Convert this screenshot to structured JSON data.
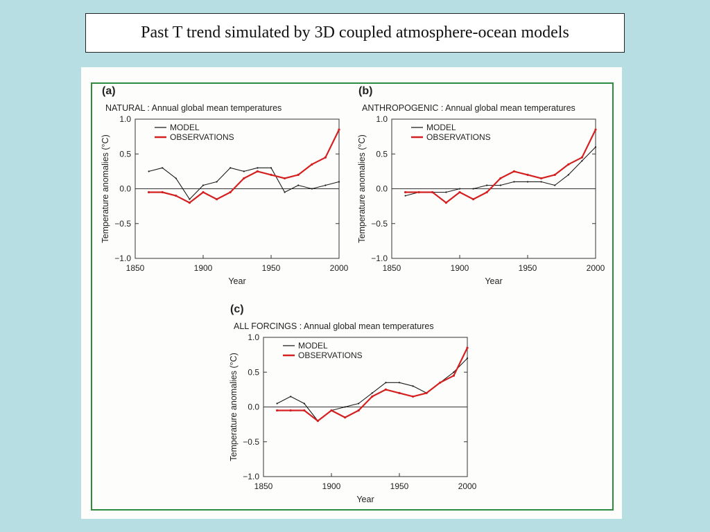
{
  "slide": {
    "title": "Past T trend simulated by 3D coupled atmosphere-ocean models"
  },
  "colors": {
    "background": "#b7dfe3",
    "panel": "#fdfdfb",
    "frame": "#2f8a3e",
    "model": "#1a1a1a",
    "observations": "#d42020"
  },
  "chart_data": [
    {
      "type": "line",
      "panel_label": "(a)",
      "title": "NATURAL : Annual global mean temperatures",
      "xlabel": "Year",
      "ylabel": "Temperature anomalies (°C)",
      "xlim": [
        1850,
        2000
      ],
      "ylim": [
        -1.0,
        1.0
      ],
      "xticks": [
        1850,
        1900,
        1950,
        2000
      ],
      "yticks": [
        -1.0,
        -0.5,
        0.0,
        0.5,
        1.0
      ],
      "ytick_labels": [
        "−1.0",
        "−0.5",
        "0.0",
        "0.5",
        "1.0"
      ],
      "legend_position": "top-left",
      "x": [
        1860,
        1870,
        1880,
        1890,
        1900,
        1910,
        1920,
        1930,
        1940,
        1950,
        1960,
        1970,
        1980,
        1990,
        2000
      ],
      "series": [
        {
          "name": "MODEL",
          "values": [
            0.25,
            0.3,
            0.15,
            -0.15,
            0.05,
            0.1,
            0.3,
            0.25,
            0.3,
            0.3,
            -0.05,
            0.05,
            0.0,
            0.05,
            0.1
          ]
        },
        {
          "name": "OBSERVATIONS",
          "values": [
            -0.05,
            -0.05,
            -0.1,
            -0.2,
            -0.05,
            -0.15,
            -0.05,
            0.15,
            0.25,
            0.2,
            0.15,
            0.2,
            0.35,
            0.45,
            0.85
          ]
        }
      ]
    },
    {
      "type": "line",
      "panel_label": "(b)",
      "title": "ANTHROPOGENIC : Annual global mean temperatures",
      "xlabel": "Year",
      "ylabel": "Temperature anomalies (°C)",
      "xlim": [
        1850,
        2000
      ],
      "ylim": [
        -1.0,
        1.0
      ],
      "xticks": [
        1850,
        1900,
        1950,
        2000
      ],
      "yticks": [
        -1.0,
        -0.5,
        0.0,
        0.5,
        1.0
      ],
      "ytick_labels": [
        "−1.0",
        "−0.5",
        "0.0",
        "0.5",
        "1.0"
      ],
      "legend_position": "top-left",
      "x": [
        1860,
        1870,
        1880,
        1890,
        1900,
        1910,
        1920,
        1930,
        1940,
        1950,
        1960,
        1970,
        1980,
        1990,
        2000
      ],
      "series": [
        {
          "name": "MODEL",
          "values": [
            -0.1,
            -0.05,
            -0.05,
            -0.05,
            0.0,
            0.0,
            0.05,
            0.05,
            0.1,
            0.1,
            0.1,
            0.05,
            0.2,
            0.4,
            0.6
          ]
        },
        {
          "name": "OBSERVATIONS",
          "values": [
            -0.05,
            -0.05,
            -0.05,
            -0.2,
            -0.05,
            -0.15,
            -0.05,
            0.15,
            0.25,
            0.2,
            0.15,
            0.2,
            0.35,
            0.45,
            0.85
          ]
        }
      ]
    },
    {
      "type": "line",
      "panel_label": "(c)",
      "title": "ALL FORCINGS : Annual global mean temperatures",
      "xlabel": "Year",
      "ylabel": "Temperature anomalies (°C)",
      "xlim": [
        1850,
        2000
      ],
      "ylim": [
        -1.0,
        1.0
      ],
      "xticks": [
        1850,
        1900,
        1950,
        2000
      ],
      "yticks": [
        -1.0,
        -0.5,
        0.0,
        0.5,
        1.0
      ],
      "ytick_labels": [
        "−1.0",
        "−0.5",
        "0.0",
        "0.5",
        "1.0"
      ],
      "legend_position": "top-left",
      "x": [
        1860,
        1870,
        1880,
        1890,
        1900,
        1910,
        1920,
        1930,
        1940,
        1950,
        1960,
        1970,
        1980,
        1990,
        2000
      ],
      "series": [
        {
          "name": "MODEL",
          "values": [
            0.05,
            0.15,
            0.05,
            -0.2,
            -0.05,
            0.0,
            0.05,
            0.2,
            0.35,
            0.35,
            0.3,
            0.2,
            0.35,
            0.5,
            0.7
          ]
        },
        {
          "name": "OBSERVATIONS",
          "values": [
            -0.05,
            -0.05,
            -0.05,
            -0.2,
            -0.05,
            -0.15,
            -0.05,
            0.15,
            0.25,
            0.2,
            0.15,
            0.2,
            0.35,
            0.45,
            0.85
          ]
        }
      ]
    }
  ]
}
